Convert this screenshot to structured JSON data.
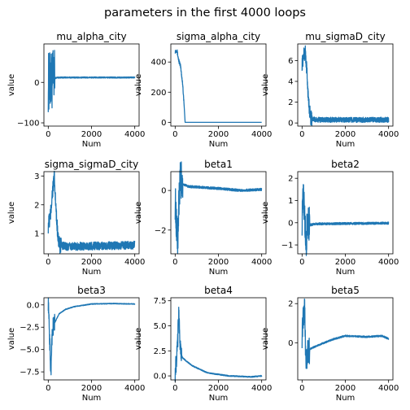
{
  "figure": {
    "title": "parameters in the first 4000 loops"
  },
  "chart_data": [
    {
      "type": "line",
      "title": "mu_alpha_city",
      "xlabel": "Num",
      "ylabel": "value",
      "xlim": [
        -200,
        4200
      ],
      "ylim": [
        -108,
        95
      ],
      "xticks": [
        0,
        2000,
        4000
      ],
      "yticks": [
        -100,
        0
      ],
      "series": [
        {
          "color": "#1f77b4",
          "x": [
            0,
            300,
            400,
            4000
          ],
          "y": [
            0,
            10,
            12,
            12
          ],
          "noise_start": 0,
          "noise_end": 300,
          "noise_amp": 75,
          "tail_amp": 1.5
        }
      ]
    },
    {
      "type": "line",
      "title": "sigma_alpha_city",
      "xlabel": "Num",
      "ylabel": "value",
      "xlim": [
        -200,
        4200
      ],
      "ylim": [
        -25,
        520
      ],
      "xticks": [
        0,
        2000,
        4000
      ],
      "yticks": [
        0,
        200,
        400
      ],
      "series": [
        {
          "color": "#1f77b4",
          "x": [
            0,
            80,
            150,
            250,
            350,
            420,
            460,
            4000
          ],
          "y": [
            470,
            480,
            420,
            370,
            250,
            100,
            0,
            0
          ],
          "noise_start": 0,
          "noise_end": 400,
          "noise_amp": 14,
          "tail_amp": 0
        }
      ]
    },
    {
      "type": "line",
      "title": "mu_sigmaD_city",
      "xlabel": "Num",
      "ylabel": "value",
      "xlim": [
        -200,
        4200
      ],
      "ylim": [
        -0.3,
        7.6
      ],
      "xticks": [
        0,
        2000,
        4000
      ],
      "yticks": [
        0,
        2,
        4,
        6
      ],
      "series": [
        {
          "color": "#1f77b4",
          "x": [
            0,
            80,
            150,
            220,
            300,
            400,
            600,
            4000
          ],
          "y": [
            5.7,
            6.5,
            6.8,
            5.0,
            2.0,
            0.5,
            0.3,
            0.3
          ],
          "noise_start": 0,
          "noise_end": 450,
          "noise_amp": 0.7,
          "tail_amp": 0.25
        }
      ]
    },
    {
      "type": "line",
      "title": "sigma_sigmaD_city",
      "xlabel": "Num",
      "ylabel": "value",
      "xlim": [
        -200,
        4200
      ],
      "ylim": [
        0.3,
        3.15
      ],
      "xticks": [
        0,
        2000,
        4000
      ],
      "yticks": [
        1,
        2,
        3
      ],
      "series": [
        {
          "color": "#1f77b4",
          "x": [
            0,
            100,
            200,
            280,
            380,
            500,
            800,
            4000
          ],
          "y": [
            1.3,
            1.6,
            2.5,
            2.9,
            1.5,
            0.6,
            0.55,
            0.6
          ],
          "noise_start": 0,
          "noise_end": 600,
          "noise_amp": 0.3,
          "tail_amp": 0.14
        }
      ]
    },
    {
      "type": "line",
      "title": "beta1",
      "xlabel": "Num",
      "ylabel": "value",
      "xlim": [
        -200,
        4200
      ],
      "ylim": [
        -3.2,
        0.95
      ],
      "xticks": [
        0,
        2000,
        4000
      ],
      "yticks": [
        -2,
        0
      ],
      "series": [
        {
          "color": "#1f77b4",
          "x": [
            0,
            60,
            120,
            180,
            240,
            400,
            600,
            2000,
            3000,
            4000
          ],
          "y": [
            -0.5,
            -1.6,
            -2.6,
            -0.5,
            0.5,
            0.3,
            0.2,
            0.1,
            0.0,
            0.05
          ],
          "noise_start": 0,
          "noise_end": 350,
          "noise_amp": 1.0,
          "tail_amp": 0.06
        }
      ]
    },
    {
      "type": "line",
      "title": "beta2",
      "xlabel": "Num",
      "ylabel": "value",
      "xlim": [
        -200,
        4200
      ],
      "ylim": [
        -1.4,
        2.3
      ],
      "xticks": [
        0,
        2000,
        4000
      ],
      "yticks": [
        -1,
        0,
        1,
        2
      ],
      "series": [
        {
          "color": "#1f77b4",
          "x": [
            0,
            60,
            120,
            180,
            250,
            400,
            600,
            4000
          ],
          "y": [
            0.2,
            1.2,
            0.4,
            -0.9,
            0.0,
            -0.1,
            -0.05,
            -0.02
          ],
          "noise_start": 0,
          "noise_end": 350,
          "noise_amp": 0.8,
          "tail_amp": 0.05
        }
      ]
    },
    {
      "type": "line",
      "title": "beta3",
      "xlabel": "Num",
      "ylabel": "value",
      "xlim": [
        -200,
        4200
      ],
      "ylim": [
        -8.4,
        0.8
      ],
      "xticks": [
        0,
        2000,
        4000
      ],
      "yticks": [
        -7.5,
        -5.0,
        -2.5,
        0.0
      ],
      "series": [
        {
          "color": "#1f77b4",
          "x": [
            0,
            40,
            80,
            120,
            160,
            220,
            300,
            500,
            800,
            1200,
            2000,
            3000,
            4000
          ],
          "y": [
            0.3,
            -2.0,
            -5.0,
            -7.8,
            -4.0,
            -2.5,
            -2.0,
            -1.0,
            -0.5,
            -0.2,
            0.1,
            0.15,
            0.1
          ],
          "noise_start": 0,
          "noise_end": 300,
          "noise_amp": 1.0,
          "tail_amp": 0.04
        }
      ]
    },
    {
      "type": "line",
      "title": "beta4",
      "xlabel": "Num",
      "ylabel": "value",
      "xlim": [
        -200,
        4200
      ],
      "ylim": [
        -0.4,
        7.8
      ],
      "xticks": [
        0,
        2000,
        4000
      ],
      "yticks": [
        0.0,
        2.5,
        5.0,
        7.5
      ],
      "series": [
        {
          "color": "#1f77b4",
          "x": [
            0,
            60,
            120,
            160,
            200,
            260,
            350,
            500,
            800,
            1500,
            2500,
            3500,
            4000
          ],
          "y": [
            0.4,
            1.5,
            3.5,
            6.5,
            4.5,
            2.2,
            1.8,
            1.5,
            1.0,
            0.3,
            0.0,
            -0.1,
            0.0
          ],
          "noise_start": 0,
          "noise_end": 300,
          "noise_amp": 1.0,
          "tail_amp": 0.05
        }
      ]
    },
    {
      "type": "line",
      "title": "beta5",
      "xlabel": "Num",
      "ylabel": "value",
      "xlim": [
        -200,
        4200
      ],
      "ylim": [
        -1.9,
        2.3
      ],
      "xticks": [
        0,
        2000,
        4000
      ],
      "yticks": [
        0,
        2
      ],
      "series": [
        {
          "color": "#1f77b4",
          "x": [
            0,
            60,
            120,
            180,
            250,
            400,
            800,
            1500,
            2000,
            3000,
            3700,
            4000
          ],
          "y": [
            0.4,
            1.5,
            1.8,
            -1.2,
            -0.5,
            -0.3,
            -0.1,
            0.2,
            0.35,
            0.3,
            0.35,
            0.2
          ],
          "noise_start": 0,
          "noise_end": 350,
          "noise_amp": 0.7,
          "tail_amp": 0.04
        }
      ]
    }
  ]
}
